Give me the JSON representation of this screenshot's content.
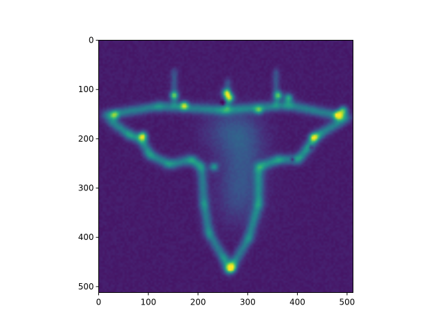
{
  "chart_data": {
    "type": "heatmap",
    "title": "",
    "xlabel": "",
    "ylabel": "",
    "colormap": "viridis",
    "image_shape": [
      512,
      512
    ],
    "xlim": [
      0,
      512
    ],
    "ylim": [
      512,
      0
    ],
    "x_ticks": [
      0,
      100,
      200,
      300,
      400,
      500
    ],
    "y_ticks": [
      0,
      100,
      200,
      300,
      400,
      500
    ],
    "x_tick_labels": [
      "0",
      "100",
      "200",
      "300",
      "400",
      "500"
    ],
    "y_tick_labels": [
      "0",
      "100",
      "200",
      "300",
      "400",
      "500"
    ],
    "grid": false,
    "legend": "none",
    "value_range": [
      0,
      1
    ],
    "background_level": 0.08,
    "structure": {
      "top_bar": {
        "from": [
          10,
          150
        ],
        "via": [
          [
            120,
            132
          ],
          [
            250,
            140
          ],
          [
            380,
            130
          ]
        ],
        "to": [
          500,
          155
        ],
        "level": 0.55
      },
      "left_arm": [
        [
          20,
          160
        ],
        [
          60,
          190
        ],
        [
          85,
          200
        ],
        [
          100,
          230
        ],
        [
          140,
          250
        ],
        [
          185,
          240
        ],
        [
          205,
          255
        ]
      ],
      "right_arm": [
        [
          490,
          160
        ],
        [
          440,
          190
        ],
        [
          420,
          215
        ],
        [
          400,
          240
        ],
        [
          360,
          240
        ],
        [
          320,
          255
        ]
      ],
      "stem_left": [
        [
          205,
          255
        ],
        [
          210,
          330
        ],
        [
          220,
          390
        ],
        [
          250,
          440
        ],
        [
          260,
          465
        ]
      ],
      "stem_right": [
        [
          320,
          255
        ],
        [
          320,
          330
        ],
        [
          300,
          400
        ],
        [
          270,
          450
        ],
        [
          260,
          465
        ]
      ],
      "spikes": [
        [
          150,
          130,
          70
        ],
        [
          258,
          140,
          60
        ],
        [
          355,
          130,
          70
        ]
      ],
      "hotspots": [
        {
          "x": 87,
          "y": 192,
          "v": 0.95
        },
        {
          "x": 170,
          "y": 130,
          "v": 0.85
        },
        {
          "x": 255,
          "y": 105,
          "v": 0.95
        },
        {
          "x": 262,
          "y": 115,
          "v": 0.9
        },
        {
          "x": 150,
          "y": 110,
          "v": 0.75
        },
        {
          "x": 360,
          "y": 110,
          "v": 0.8
        },
        {
          "x": 380,
          "y": 115,
          "v": 0.75
        },
        {
          "x": 480,
          "y": 150,
          "v": 1.0
        },
        {
          "x": 490,
          "y": 140,
          "v": 0.8
        },
        {
          "x": 430,
          "y": 195,
          "v": 0.9
        },
        {
          "x": 265,
          "y": 460,
          "v": 0.9
        },
        {
          "x": 30,
          "y": 150,
          "v": 0.65
        },
        {
          "x": 320,
          "y": 140,
          "v": 0.6
        },
        {
          "x": 230,
          "y": 255,
          "v": 0.6
        }
      ],
      "dark_spots": [
        {
          "x": 248,
          "y": 125
        },
        {
          "x": 388,
          "y": 240
        },
        {
          "x": 425,
          "y": 215
        }
      ]
    }
  }
}
